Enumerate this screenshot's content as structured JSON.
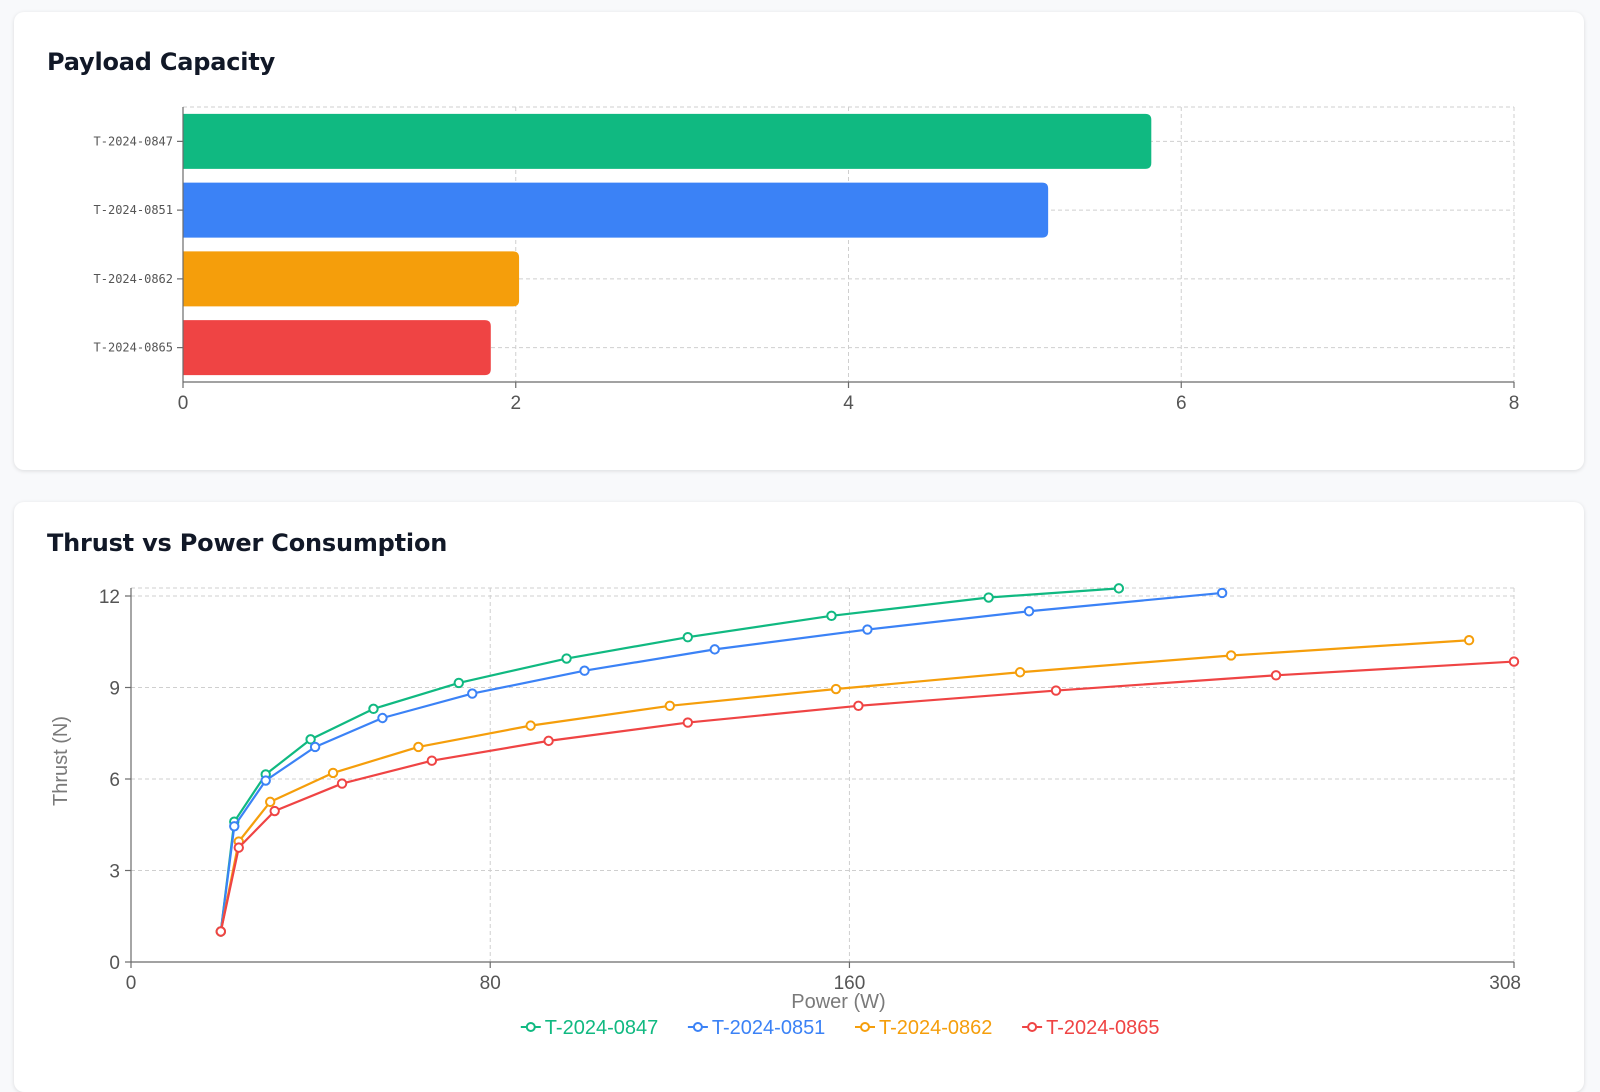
{
  "charts": [
    {
      "title": "Payload Capacity",
      "chart_data": {
        "type": "bar",
        "orientation": "horizontal",
        "categories": [
          "T-2024-0847",
          "T-2024-0851",
          "T-2024-0862",
          "T-2024-0865"
        ],
        "values": [
          5.82,
          5.2,
          2.02,
          1.85
        ],
        "colors": [
          "#10b981",
          "#3b82f6",
          "#f59e0b",
          "#ef4444"
        ],
        "xlim": [
          0,
          8
        ],
        "xticks": [
          0,
          2,
          4,
          6,
          8
        ],
        "grid": true
      }
    },
    {
      "title": "Thrust vs Power Consumption",
      "chart_data": {
        "type": "line",
        "xlabel": "Power (W)",
        "ylabel": "Thrust (N)",
        "xlim": [
          0,
          308
        ],
        "ylim": [
          0,
          12
        ],
        "xticks": [
          0,
          80,
          160,
          308
        ],
        "yticks": [
          0,
          3,
          6,
          9,
          12
        ],
        "grid": true,
        "legend": "bottom",
        "series": [
          {
            "name": "T-2024-0847",
            "color": "#10b981",
            "points": [
              [
                20,
                1
              ],
              [
                23,
                4.6
              ],
              [
                30,
                6.15
              ],
              [
                40,
                7.3
              ],
              [
                54,
                8.3
              ],
              [
                73,
                9.15
              ],
              [
                97,
                9.95
              ],
              [
                124,
                10.65
              ],
              [
                156,
                11.35
              ],
              [
                191,
                11.95
              ],
              [
                220,
                12.25
              ]
            ]
          },
          {
            "name": "T-2024-0851",
            "color": "#3b82f6",
            "points": [
              [
                20,
                1
              ],
              [
                23,
                4.45
              ],
              [
                30,
                5.95
              ],
              [
                41,
                7.05
              ],
              [
                56,
                8
              ],
              [
                76,
                8.8
              ],
              [
                101,
                9.55
              ],
              [
                130,
                10.25
              ],
              [
                164,
                10.9
              ],
              [
                200,
                11.5
              ],
              [
                243,
                12.1
              ]
            ]
          },
          {
            "name": "T-2024-0862",
            "color": "#f59e0b",
            "points": [
              [
                20,
                1
              ],
              [
                24,
                3.95
              ],
              [
                31,
                5.25
              ],
              [
                45,
                6.2
              ],
              [
                64,
                7.05
              ],
              [
                89,
                7.75
              ],
              [
                120,
                8.4
              ],
              [
                157,
                8.95
              ],
              [
                198,
                9.5
              ],
              [
                245,
                10.05
              ],
              [
                298,
                10.55
              ]
            ]
          },
          {
            "name": "T-2024-0865",
            "color": "#ef4444",
            "points": [
              [
                20,
                1
              ],
              [
                24,
                3.75
              ],
              [
                32,
                4.95
              ],
              [
                47,
                5.85
              ],
              [
                67,
                6.6
              ],
              [
                93,
                7.25
              ],
              [
                124,
                7.85
              ],
              [
                162,
                8.4
              ],
              [
                206,
                8.9
              ],
              [
                255,
                9.4
              ],
              [
                308,
                9.85
              ]
            ]
          }
        ]
      }
    }
  ]
}
